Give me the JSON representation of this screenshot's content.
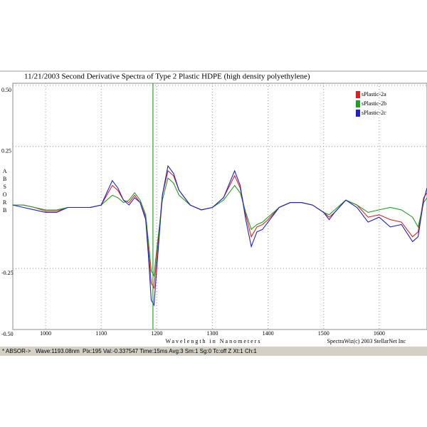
{
  "chart_data": {
    "type": "line",
    "title": "11/21/2003   Second Derivative Spectra of Type 2 Plastic HDPE (high density polyethylene)",
    "x_label": "Wavelength in Nanometers",
    "y_label": "ABSORB",
    "credit": "SpectraWiz(c) 2003 StellarNet Inc",
    "x": [
      941,
      960,
      980,
      1000,
      1020,
      1040,
      1060,
      1080,
      1100,
      1110,
      1120,
      1130,
      1140,
      1150,
      1160,
      1170,
      1180,
      1185,
      1190,
      1195,
      1200,
      1210,
      1220,
      1230,
      1240,
      1260,
      1280,
      1300,
      1320,
      1340,
      1350,
      1360,
      1370,
      1380,
      1390,
      1400,
      1420,
      1440,
      1460,
      1480,
      1500,
      1510,
      1520,
      1540,
      1560,
      1580,
      1600,
      1620,
      1640,
      1660,
      1670,
      1680,
      1686
    ],
    "series": [
      {
        "name": "sPlastic-2a",
        "color": "#e02020",
        "values": [
          0.01,
          0.01,
          0.0,
          -0.015,
          -0.015,
          0.0,
          0.0,
          0.0,
          0.01,
          0.05,
          0.09,
          0.07,
          0.03,
          0.02,
          0.05,
          0.02,
          -0.04,
          -0.17,
          -0.31,
          -0.33,
          -0.2,
          0.05,
          0.15,
          0.13,
          0.07,
          0.01,
          -0.01,
          0.0,
          0.04,
          0.13,
          0.08,
          -0.03,
          -0.12,
          -0.08,
          -0.07,
          -0.05,
          0.0,
          0.02,
          0.02,
          0.01,
          -0.02,
          -0.04,
          -0.02,
          0.03,
          0.01,
          -0.04,
          -0.03,
          -0.05,
          -0.06,
          -0.12,
          -0.1,
          0.04,
          0.06
        ]
      },
      {
        "name": "sPlastic-2b",
        "color": "#20a020",
        "values": [
          0.01,
          0.01,
          0.0,
          -0.01,
          -0.01,
          0.0,
          0.0,
          0.0,
          0.01,
          0.03,
          0.05,
          0.04,
          0.02,
          0.03,
          0.06,
          0.03,
          -0.03,
          -0.14,
          -0.26,
          -0.28,
          -0.17,
          0.03,
          0.12,
          0.1,
          0.05,
          0.01,
          -0.01,
          0.0,
          0.03,
          0.09,
          0.06,
          -0.02,
          -0.09,
          -0.07,
          -0.06,
          -0.04,
          0.0,
          0.02,
          0.02,
          0.01,
          -0.02,
          -0.03,
          -0.01,
          0.03,
          0.01,
          -0.02,
          -0.01,
          0.0,
          -0.01,
          -0.04,
          -0.08,
          0.02,
          0.04
        ]
      },
      {
        "name": "sPlastic-2c",
        "color": "#2020d0",
        "values": [
          0.01,
          0.0,
          -0.01,
          -0.02,
          -0.02,
          0.0,
          0.0,
          0.0,
          0.01,
          0.06,
          0.11,
          0.08,
          0.03,
          0.01,
          0.04,
          0.02,
          -0.05,
          -0.2,
          -0.38,
          -0.4,
          -0.25,
          0.05,
          0.17,
          0.14,
          0.07,
          0.01,
          -0.01,
          0.0,
          0.04,
          0.15,
          0.09,
          -0.05,
          -0.16,
          -0.1,
          -0.09,
          -0.06,
          0.0,
          0.02,
          0.02,
          0.01,
          -0.02,
          -0.05,
          -0.02,
          0.03,
          0.0,
          -0.06,
          -0.04,
          -0.08,
          -0.07,
          -0.14,
          -0.12,
          0.03,
          0.08
        ]
      }
    ],
    "xlim": [
      941,
      1686
    ],
    "xticks": [
      1000,
      1100,
      1200,
      1300,
      1400,
      1500,
      1600
    ],
    "ylim": [
      -0.5,
      0.5
    ],
    "yticks": [
      {
        "value": 0.5,
        "label": "0.50"
      },
      0.25,
      -0.25,
      {
        "value": -0.5,
        "label": "-0.50"
      }
    ],
    "grid": true,
    "legend": "upper right",
    "cursor": {
      "value": 1193.08,
      "label": "Wave:1193.08nm",
      "color": "#30a030"
    },
    "status_prefix": "* ABSOR->",
    "status_rest": "Pix:195  Val:-0.337547  Time:15ms  Avg:3  Sm:1  Sg:0  Tc:off  Z  Xt:1  Ch:1"
  }
}
